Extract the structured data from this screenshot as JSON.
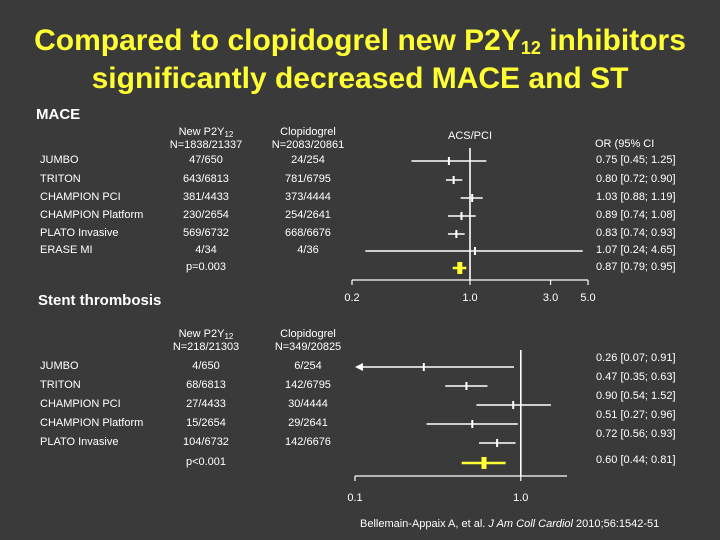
{
  "title": {
    "line1_pre": "Compared to clopidogrel new P2Y",
    "line1_sub": "12",
    "line1_post": " inhibitors",
    "line2": "significantly decreased MACE and ST"
  },
  "citation": {
    "authors": "Bellemain-Appaix A, et al.",
    "journal": "J Am Coll Cardiol",
    "ref": "2010;56:1542-51"
  },
  "colors": {
    "background": "#3a3a3a",
    "title": "#ffff33",
    "pooled": "#ffff33",
    "lines": "#ffffff"
  },
  "chart_data": [
    {
      "type": "forest",
      "title": "MACE",
      "col_new_l1": "New P2Y",
      "col_new_sub": "12",
      "col_new_l2": "N=1838/21337",
      "col_clop_l1": "Clopidogrel",
      "col_clop_l2": "N=2083/20861",
      "plot_label": "ACS/PCI",
      "or_header": "OR (95% CI",
      "scale": "log",
      "xlim": [
        0.2,
        5.0
      ],
      "ticks": [
        {
          "value": 0.2,
          "label": "0.2"
        },
        {
          "value": 1.0,
          "label": "1.0"
        },
        {
          "value": 3.0,
          "label": "3.0"
        },
        {
          "value": 5.0,
          "label": "5.0"
        }
      ],
      "reference_line": 1.0,
      "rows": [
        {
          "name": "JUMBO",
          "new": "47/650",
          "clop": "24/254",
          "or": 0.75,
          "lo": 0.45,
          "hi": 1.25,
          "or_text": "0.75 [0.45; 1.25]"
        },
        {
          "name": "TRITON",
          "new": "643/6813",
          "clop": "781/6795",
          "or": 0.8,
          "lo": 0.72,
          "hi": 0.9,
          "or_text": "0.80 [0.72; 0.90]"
        },
        {
          "name": "CHAMPION PCI",
          "new": "381/4433",
          "clop": "373/4444",
          "or": 1.03,
          "lo": 0.88,
          "hi": 1.19,
          "or_text": "1.03 [0.88; 1.19]"
        },
        {
          "name": "CHAMPION Platform",
          "new": "230/2654",
          "clop": "254/2641",
          "or": 0.89,
          "lo": 0.74,
          "hi": 1.08,
          "or_text": "0.89 [0.74; 1.08]"
        },
        {
          "name": "PLATO Invasive",
          "new": "569/6732",
          "clop": "668/6676",
          "or": 0.83,
          "lo": 0.74,
          "hi": 0.93,
          "or_text": "0.83 [0.74; 0.93]"
        },
        {
          "name": "ERASE MI",
          "new": "4/34",
          "clop": "4/36",
          "or": 1.07,
          "lo": 0.24,
          "hi": 4.65,
          "or_text": "1.07 [0.24; 4.65]"
        }
      ],
      "pooled": {
        "p": "p=0.003",
        "or": 0.87,
        "lo": 0.79,
        "hi": 0.95,
        "or_text": "0.87 [0.79; 0.95]"
      }
    },
    {
      "type": "forest",
      "title": "Stent thrombosis",
      "col_new_l1": "New P2Y",
      "col_new_sub": "12",
      "col_new_l2": "N=218/21303",
      "col_clop_l1": "Clopidogrel",
      "col_clop_l2": "N=349/20825",
      "scale": "log",
      "xlim": [
        0.1,
        1.9
      ],
      "ticks": [
        {
          "value": 0.1,
          "label": "0.1"
        },
        {
          "value": 1.0,
          "label": "1.0"
        }
      ],
      "reference_line": 1.0,
      "rows": [
        {
          "name": "JUMBO",
          "new": "4/650",
          "clop": "6/254",
          "or": 0.26,
          "lo": 0.07,
          "hi": 0.91,
          "or_text": "0.26 [0.07; 0.91]",
          "arrow_left": true
        },
        {
          "name": "TRITON",
          "new": "68/6813",
          "clop": "142/6795",
          "or": 0.47,
          "lo": 0.35,
          "hi": 0.63,
          "or_text": "0.47 [0.35; 0.63]"
        },
        {
          "name": "CHAMPION PCI",
          "new": "27/4433",
          "clop": "30/4444",
          "or": 0.9,
          "lo": 0.54,
          "hi": 1.52,
          "or_text": "0.90 [0.54; 1.52]"
        },
        {
          "name": "CHAMPION Platform",
          "new": "15/2654",
          "clop": "29/2641",
          "or": 0.51,
          "lo": 0.27,
          "hi": 0.96,
          "or_text": "0.51 [0.27; 0.96]"
        },
        {
          "name": "PLATO Invasive",
          "new": "104/6732",
          "clop": "142/6676",
          "or": 0.72,
          "lo": 0.56,
          "hi": 0.93,
          "or_text": "0.72 [0.56; 0.93]"
        }
      ],
      "pooled": {
        "p": "p<0.001",
        "or": 0.6,
        "lo": 0.44,
        "hi": 0.81,
        "or_text": "0.60 [0.44; 0.81]"
      }
    }
  ]
}
